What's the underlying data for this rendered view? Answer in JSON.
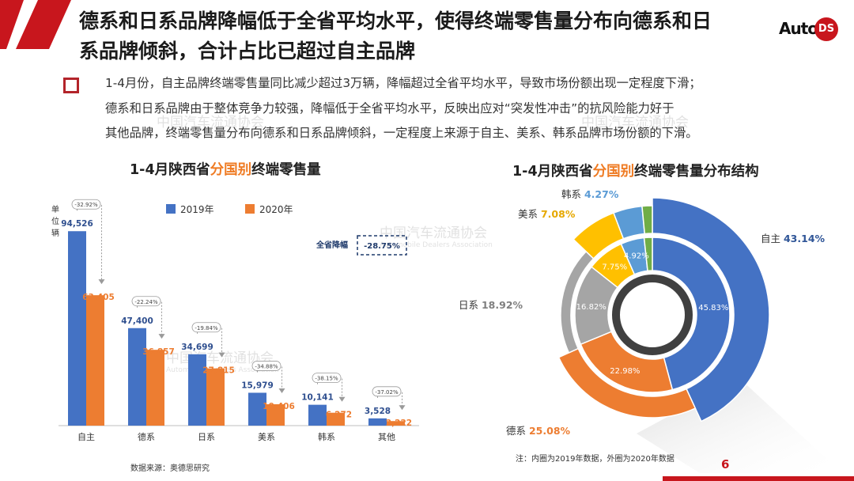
{
  "header": {
    "title_line1": "德系和日系品牌降幅低于全省平均水平，使得终端零售量分布向德系和日",
    "title_line2": "系品牌倾斜，合计占比已超过自主品牌",
    "logo_auto": "Auto",
    "logo_ds": "DS"
  },
  "summary": {
    "lines": [
      "1-4月份，自主品牌终端零售量同比减少超过3万辆，降幅超过全省平均水平，导致市场份额出现一定程度下滑；",
      "德系和日系品牌由于整体竞争力较强，降幅低于全省平均水平，反映出应对“突发性冲击”的抗风险能力好于",
      "其他品牌，终端零售量分布向德系和日系品牌倾斜，一定程度上来源于自主、美系、韩系品牌市场份额的下滑。"
    ]
  },
  "watermark": {
    "cn": "中国汽车流通协会",
    "en": "Automobile Dealers Association"
  },
  "left_chart": {
    "title_pre": "1-4月陕西省",
    "title_hl": "分国别",
    "title_post": "终端零售量",
    "unit_label": "单位：辆",
    "overall_label": "全省降幅",
    "overall_value": "-28.75%",
    "source": "数据来源：奥德思研究"
  },
  "right_chart": {
    "title_pre": "1-4月陕西省",
    "title_hl": "分国别",
    "title_post": "终端零售量分布结构",
    "note": "注：内圈为2019年数据，外圈为2020年数据"
  },
  "page_number": "6",
  "colors": {
    "accent_red": "#c8161d",
    "series_2019": "#4472c4",
    "series_2020": "#ed7d31",
    "gray": "#a5a5a5",
    "yellow": "#ffc000",
    "light_blue": "#5b9bd5",
    "green": "#70ad47"
  },
  "chart_data": [
    {
      "type": "bar",
      "title": "1-4月陕西省分国别终端零售量",
      "ylabel": "单位：辆",
      "categories": [
        "自主",
        "德系",
        "日系",
        "美系",
        "韩系",
        "其他"
      ],
      "series": [
        {
          "name": "2019年",
          "values": [
            94526,
            47400,
            34699,
            15979,
            10141,
            3528
          ],
          "labels": [
            "94,526",
            "47,400",
            "34,699",
            "15,979",
            "10,141",
            "3,528"
          ],
          "color": "#4472c4"
        },
        {
          "name": "2020年",
          "values": [
            63405,
            36857,
            27815,
            10406,
            6272,
            2222
          ],
          "labels": [
            "63,405",
            "36,857",
            "27,815",
            "10,406",
            "6,272",
            "2,222"
          ],
          "color": "#ed7d31"
        }
      ],
      "change_labels": [
        "-32.92%",
        "-22.24%",
        "-19.84%",
        "-34.88%",
        "-38.15%",
        "-37.02%"
      ],
      "ylim": [
        0,
        100000
      ],
      "legend_position": "top",
      "grid": false
    },
    {
      "type": "pie",
      "variant": "double-doughnut",
      "title": "1-4月陕西省分国别终端零售量分布结构",
      "inner": {
        "name": "2019年",
        "categories": [
          "自主",
          "德系",
          "日系",
          "美系",
          "韩系",
          "其他"
        ],
        "values": [
          45.83,
          22.98,
          16.82,
          7.75,
          4.92,
          1.7
        ],
        "labels": [
          "45.83%",
          "22.98%",
          "16.82%",
          "7.75%",
          "4.92%",
          ""
        ]
      },
      "outer": {
        "name": "2020年",
        "categories": [
          "自主",
          "德系",
          "日系",
          "美系",
          "韩系",
          "其他"
        ],
        "values": [
          43.14,
          25.08,
          18.92,
          7.08,
          4.27,
          1.51
        ],
        "labels": [
          "43.14%",
          "25.08%",
          "18.92%",
          "7.08%",
          "4.27%",
          ""
        ]
      },
      "colors": [
        "#4472c4",
        "#ed7d31",
        "#a5a5a5",
        "#ffc000",
        "#5b9bd5",
        "#70ad47"
      ]
    }
  ]
}
